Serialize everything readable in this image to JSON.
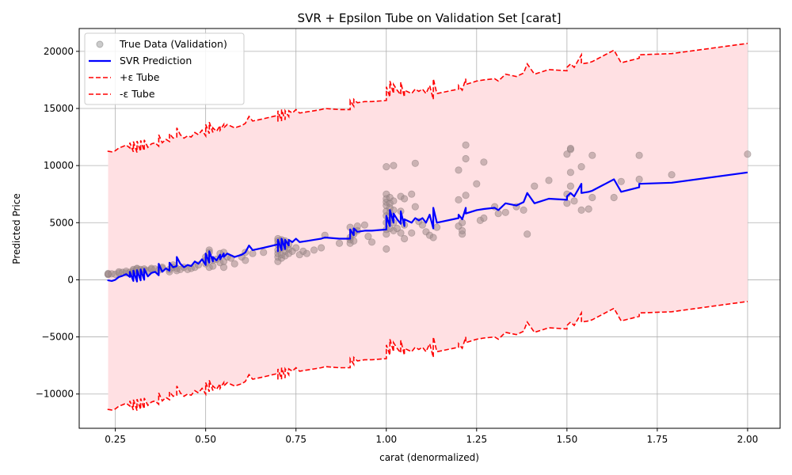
{
  "chart_data": {
    "type": "scatter",
    "title": "SVR + Epsilon Tube on Validation Set [carat]",
    "xlabel": "carat (denormalized)",
    "ylabel": "Predicted Price",
    "xlim": [
      0.15,
      2.09
    ],
    "ylim": [
      -13000,
      22000
    ],
    "xticks": [
      0.25,
      0.5,
      0.75,
      1.0,
      1.25,
      1.5,
      1.75,
      2.0
    ],
    "xtick_labels": [
      "0.25",
      "0.50",
      "0.75",
      "1.00",
      "1.25",
      "1.50",
      "1.75",
      "2.00"
    ],
    "yticks": [
      -10000,
      -5000,
      0,
      5000,
      10000,
      15000,
      20000
    ],
    "ytick_labels": [
      "−10000",
      "−5000",
      "0",
      "5000",
      "10000",
      "15000",
      "20000"
    ],
    "grid": true,
    "legend_position": "top-left",
    "epsilon": 11300,
    "colors": {
      "scatter": "#a08c8c",
      "prediction": "#0000ff",
      "tube": "#ff0000",
      "fill": "#ffe0e3"
    },
    "series": [
      {
        "name": "True Data (Validation)",
        "kind": "scatter",
        "points": [
          [
            0.23,
            450
          ],
          [
            0.23,
            500
          ],
          [
            0.23,
            550
          ],
          [
            0.24,
            520
          ],
          [
            0.25,
            480
          ],
          [
            0.26,
            600
          ],
          [
            0.26,
            700
          ],
          [
            0.27,
            650
          ],
          [
            0.28,
            600
          ],
          [
            0.28,
            750
          ],
          [
            0.29,
            650
          ],
          [
            0.3,
            700
          ],
          [
            0.3,
            800
          ],
          [
            0.3,
            900
          ],
          [
            0.31,
            850
          ],
          [
            0.31,
            950
          ],
          [
            0.31,
            1000
          ],
          [
            0.32,
            800
          ],
          [
            0.32,
            900
          ],
          [
            0.33,
            850
          ],
          [
            0.33,
            950
          ],
          [
            0.34,
            800
          ],
          [
            0.35,
            900
          ],
          [
            0.35,
            1000
          ],
          [
            0.36,
            950
          ],
          [
            0.37,
            850
          ],
          [
            0.38,
            1000
          ],
          [
            0.38,
            1100
          ],
          [
            0.4,
            700
          ],
          [
            0.4,
            900
          ],
          [
            0.41,
            1100
          ],
          [
            0.41,
            1300
          ],
          [
            0.42,
            1000
          ],
          [
            0.42,
            800
          ],
          [
            0.43,
            900
          ],
          [
            0.44,
            1100
          ],
          [
            0.45,
            900
          ],
          [
            0.46,
            1000
          ],
          [
            0.47,
            1100
          ],
          [
            0.48,
            1300
          ],
          [
            0.5,
            1400
          ],
          [
            0.5,
            1700
          ],
          [
            0.5,
            2000
          ],
          [
            0.51,
            2600
          ],
          [
            0.51,
            2400
          ],
          [
            0.51,
            1100
          ],
          [
            0.52,
            1200
          ],
          [
            0.52,
            1700
          ],
          [
            0.53,
            1800
          ],
          [
            0.54,
            1500
          ],
          [
            0.54,
            2300
          ],
          [
            0.55,
            1100
          ],
          [
            0.55,
            1600
          ],
          [
            0.55,
            2400
          ],
          [
            0.56,
            2000
          ],
          [
            0.57,
            1900
          ],
          [
            0.58,
            1400
          ],
          [
            0.6,
            2000
          ],
          [
            0.61,
            1700
          ],
          [
            0.61,
            2400
          ],
          [
            0.63,
            2300
          ],
          [
            0.66,
            2400
          ],
          [
            0.7,
            1600
          ],
          [
            0.7,
            2000
          ],
          [
            0.7,
            2300
          ],
          [
            0.7,
            2600
          ],
          [
            0.7,
            3100
          ],
          [
            0.7,
            3400
          ],
          [
            0.7,
            3600
          ],
          [
            0.71,
            1900
          ],
          [
            0.71,
            2200
          ],
          [
            0.71,
            2800
          ],
          [
            0.71,
            3300
          ],
          [
            0.71,
            3500
          ],
          [
            0.72,
            2100
          ],
          [
            0.72,
            2500
          ],
          [
            0.72,
            2900
          ],
          [
            0.72,
            3400
          ],
          [
            0.73,
            2300
          ],
          [
            0.73,
            2700
          ],
          [
            0.73,
            3100
          ],
          [
            0.74,
            2500
          ],
          [
            0.75,
            2800
          ],
          [
            0.76,
            2200
          ],
          [
            0.77,
            2500
          ],
          [
            0.78,
            2300
          ],
          [
            0.8,
            2600
          ],
          [
            0.82,
            2800
          ],
          [
            0.83,
            3900
          ],
          [
            0.87,
            3200
          ],
          [
            0.9,
            3200
          ],
          [
            0.9,
            3500
          ],
          [
            0.9,
            3700
          ],
          [
            0.9,
            4600
          ],
          [
            0.91,
            3400
          ],
          [
            0.91,
            4000
          ],
          [
            0.91,
            4200
          ],
          [
            0.92,
            4300
          ],
          [
            0.92,
            4700
          ],
          [
            0.94,
            4800
          ],
          [
            0.95,
            3800
          ],
          [
            0.96,
            3300
          ],
          [
            1.0,
            2700
          ],
          [
            1.0,
            4000
          ],
          [
            1.0,
            4400
          ],
          [
            1.0,
            5000
          ],
          [
            1.0,
            5600
          ],
          [
            1.0,
            6000
          ],
          [
            1.0,
            6500
          ],
          [
            1.0,
            6800
          ],
          [
            1.0,
            7100
          ],
          [
            1.0,
            7500
          ],
          [
            1.0,
            9900
          ],
          [
            1.01,
            4500
          ],
          [
            1.01,
            5200
          ],
          [
            1.01,
            5900
          ],
          [
            1.01,
            6300
          ],
          [
            1.01,
            6700
          ],
          [
            1.01,
            7200
          ],
          [
            1.02,
            4300
          ],
          [
            1.02,
            5000
          ],
          [
            1.02,
            6100
          ],
          [
            1.02,
            6900
          ],
          [
            1.02,
            10000
          ],
          [
            1.03,
            4500
          ],
          [
            1.04,
            4100
          ],
          [
            1.04,
            6000
          ],
          [
            1.04,
            7300
          ],
          [
            1.05,
            3600
          ],
          [
            1.05,
            4800
          ],
          [
            1.05,
            7100
          ],
          [
            1.07,
            4100
          ],
          [
            1.07,
            7500
          ],
          [
            1.08,
            6400
          ],
          [
            1.08,
            10200
          ],
          [
            1.09,
            5100
          ],
          [
            1.1,
            4800
          ],
          [
            1.11,
            4200
          ],
          [
            1.12,
            3900
          ],
          [
            1.13,
            3700
          ],
          [
            1.14,
            4600
          ],
          [
            1.2,
            4700
          ],
          [
            1.2,
            7000
          ],
          [
            1.2,
            9600
          ],
          [
            1.21,
            4000
          ],
          [
            1.21,
            4300
          ],
          [
            1.21,
            5000
          ],
          [
            1.22,
            7400
          ],
          [
            1.22,
            10600
          ],
          [
            1.22,
            11800
          ],
          [
            1.25,
            8400
          ],
          [
            1.26,
            5200
          ],
          [
            1.27,
            5400
          ],
          [
            1.27,
            10300
          ],
          [
            1.3,
            6400
          ],
          [
            1.31,
            5800
          ],
          [
            1.33,
            5900
          ],
          [
            1.36,
            6400
          ],
          [
            1.38,
            6100
          ],
          [
            1.39,
            4000
          ],
          [
            1.41,
            8200
          ],
          [
            1.45,
            8700
          ],
          [
            1.5,
            6700
          ],
          [
            1.5,
            7500
          ],
          [
            1.5,
            11000
          ],
          [
            1.51,
            8200
          ],
          [
            1.51,
            9400
          ],
          [
            1.51,
            11400
          ],
          [
            1.51,
            11500
          ],
          [
            1.52,
            6900
          ],
          [
            1.54,
            6100
          ],
          [
            1.54,
            9900
          ],
          [
            1.56,
            6200
          ],
          [
            1.57,
            7200
          ],
          [
            1.57,
            10900
          ],
          [
            1.63,
            7200
          ],
          [
            1.65,
            8600
          ],
          [
            1.7,
            8800
          ],
          [
            1.7,
            10900
          ],
          [
            1.79,
            9200
          ],
          [
            2.0,
            11000
          ]
        ]
      },
      {
        "name": "SVR Prediction",
        "kind": "line",
        "points": [
          [
            0.23,
            0
          ],
          [
            0.23,
            -50
          ],
          [
            0.24,
            -100
          ],
          [
            0.25,
            0
          ],
          [
            0.26,
            250
          ],
          [
            0.27,
            350
          ],
          [
            0.28,
            500
          ],
          [
            0.29,
            250
          ],
          [
            0.29,
            700
          ],
          [
            0.3,
            -100
          ],
          [
            0.3,
            800
          ],
          [
            0.31,
            -150
          ],
          [
            0.31,
            850
          ],
          [
            0.32,
            -50
          ],
          [
            0.32,
            900
          ],
          [
            0.33,
            0
          ],
          [
            0.33,
            950
          ],
          [
            0.34,
            300
          ],
          [
            0.35,
            600
          ],
          [
            0.36,
            700
          ],
          [
            0.37,
            400
          ],
          [
            0.37,
            1400
          ],
          [
            0.38,
            700
          ],
          [
            0.39,
            1000
          ],
          [
            0.4,
            800
          ],
          [
            0.4,
            1500
          ],
          [
            0.41,
            1100
          ],
          [
            0.42,
            1200
          ],
          [
            0.42,
            2000
          ],
          [
            0.43,
            1400
          ],
          [
            0.44,
            1100
          ],
          [
            0.45,
            1300
          ],
          [
            0.46,
            1200
          ],
          [
            0.47,
            1600
          ],
          [
            0.48,
            1400
          ],
          [
            0.49,
            1800
          ],
          [
            0.5,
            1300
          ],
          [
            0.5,
            2300
          ],
          [
            0.51,
            1500
          ],
          [
            0.51,
            2500
          ],
          [
            0.52,
            1600
          ],
          [
            0.52,
            2000
          ],
          [
            0.53,
            1700
          ],
          [
            0.54,
            2200
          ],
          [
            0.54,
            1800
          ],
          [
            0.55,
            2300
          ],
          [
            0.55,
            2000
          ],
          [
            0.56,
            2300
          ],
          [
            0.58,
            2000
          ],
          [
            0.6,
            2200
          ],
          [
            0.61,
            2400
          ],
          [
            0.62,
            3000
          ],
          [
            0.63,
            2600
          ],
          [
            0.66,
            2800
          ],
          [
            0.7,
            3100
          ],
          [
            0.7,
            2500
          ],
          [
            0.7,
            3500
          ],
          [
            0.71,
            2600
          ],
          [
            0.71,
            3600
          ],
          [
            0.72,
            2700
          ],
          [
            0.72,
            3500
          ],
          [
            0.73,
            3000
          ],
          [
            0.73,
            3500
          ],
          [
            0.74,
            3300
          ],
          [
            0.75,
            3600
          ],
          [
            0.76,
            3300
          ],
          [
            0.78,
            3400
          ],
          [
            0.8,
            3500
          ],
          [
            0.82,
            3600
          ],
          [
            0.83,
            3700
          ],
          [
            0.87,
            3600
          ],
          [
            0.9,
            3600
          ],
          [
            0.9,
            4400
          ],
          [
            0.91,
            3900
          ],
          [
            0.91,
            4500
          ],
          [
            0.92,
            4200
          ],
          [
            0.94,
            4300
          ],
          [
            0.95,
            4300
          ],
          [
            0.96,
            4300
          ],
          [
            1.0,
            4400
          ],
          [
            1.0,
            5600
          ],
          [
            1.01,
            4700
          ],
          [
            1.01,
            6100
          ],
          [
            1.02,
            5000
          ],
          [
            1.02,
            5800
          ],
          [
            1.03,
            5300
          ],
          [
            1.04,
            4900
          ],
          [
            1.04,
            6000
          ],
          [
            1.05,
            4700
          ],
          [
            1.05,
            5300
          ],
          [
            1.07,
            5000
          ],
          [
            1.08,
            5400
          ],
          [
            1.09,
            5200
          ],
          [
            1.1,
            5400
          ],
          [
            1.11,
            5000
          ],
          [
            1.12,
            5700
          ],
          [
            1.13,
            4500
          ],
          [
            1.13,
            6300
          ],
          [
            1.14,
            5000
          ],
          [
            1.2,
            5400
          ],
          [
            1.2,
            5700
          ],
          [
            1.21,
            5300
          ],
          [
            1.22,
            6300
          ],
          [
            1.22,
            5800
          ],
          [
            1.25,
            6100
          ],
          [
            1.27,
            6200
          ],
          [
            1.3,
            6300
          ],
          [
            1.31,
            6100
          ],
          [
            1.33,
            6700
          ],
          [
            1.36,
            6500
          ],
          [
            1.38,
            6800
          ],
          [
            1.39,
            7600
          ],
          [
            1.41,
            6700
          ],
          [
            1.45,
            7100
          ],
          [
            1.5,
            7000
          ],
          [
            1.5,
            7300
          ],
          [
            1.51,
            7600
          ],
          [
            1.52,
            7300
          ],
          [
            1.54,
            8400
          ],
          [
            1.54,
            7600
          ],
          [
            1.56,
            7700
          ],
          [
            1.57,
            7800
          ],
          [
            1.63,
            8800
          ],
          [
            1.65,
            7700
          ],
          [
            1.7,
            8100
          ],
          [
            1.7,
            8400
          ],
          [
            1.79,
            8500
          ],
          [
            2.0,
            9400
          ]
        ]
      },
      {
        "name": "+ε Tube",
        "kind": "dashed",
        "offset": 11300
      },
      {
        "name": "-ε Tube",
        "kind": "dashed",
        "offset": -11300
      }
    ]
  }
}
